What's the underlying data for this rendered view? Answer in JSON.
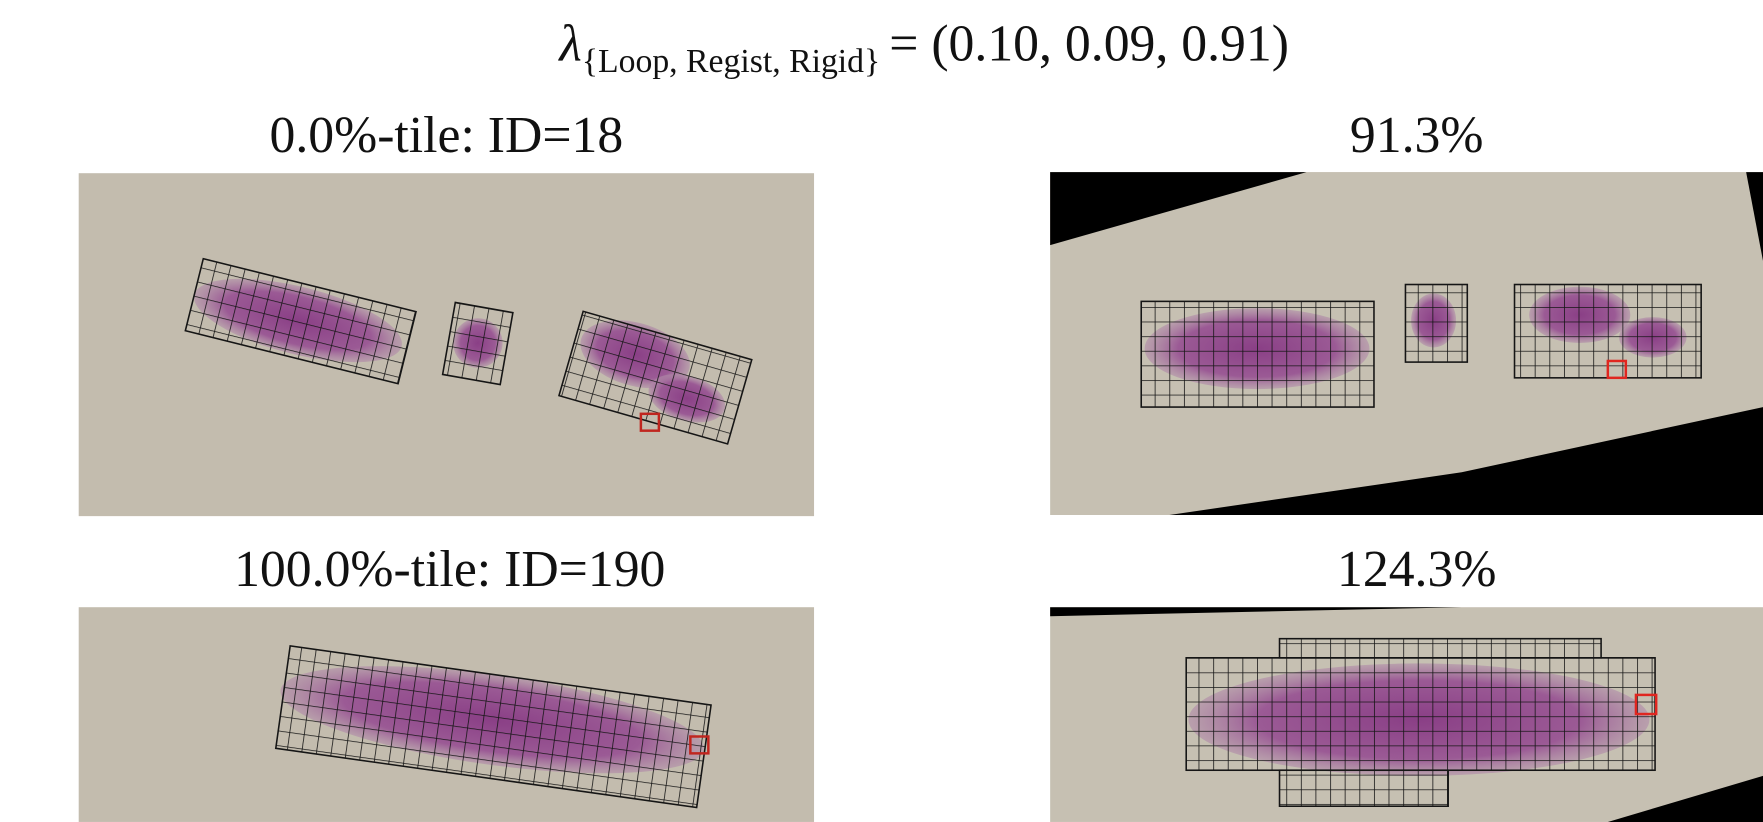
{
  "title": {
    "symbol": "λ",
    "subscript": "{Loop, Regist, Rigid}",
    "rhs": "= (0.10, 0.09, 0.91)"
  },
  "panels": [
    {
      "title": "0.0%-tile: ID=18"
    },
    {
      "title": "91.3%"
    },
    {
      "title": "100.0%-tile: ID=190"
    },
    {
      "title": "124.3%"
    }
  ]
}
